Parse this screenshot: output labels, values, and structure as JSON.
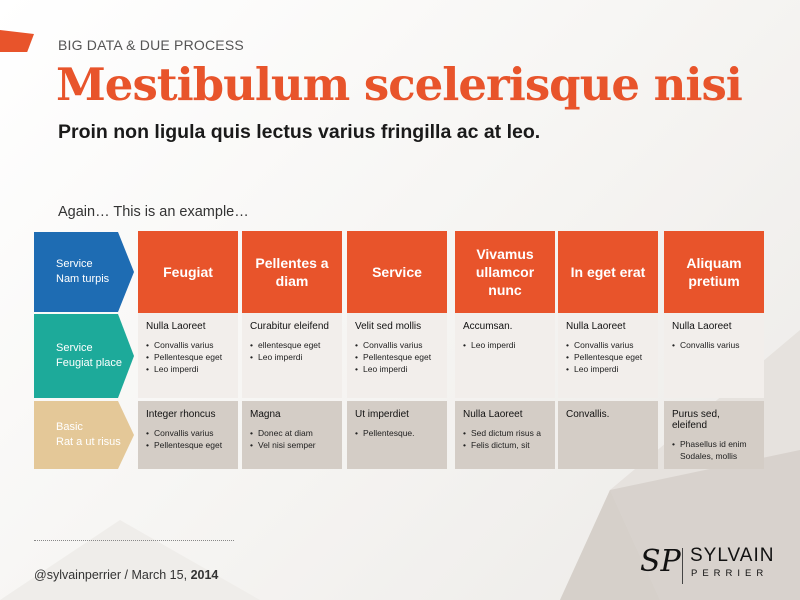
{
  "header": {
    "kicker": "BIG DATA & DUE PROCESS",
    "title": "Mestibulum scelerisque nisi",
    "subtitle": "Proin non ligula quis lectus varius fringilla ac at leo.",
    "intro": "Again… This is an example…"
  },
  "rows": [
    {
      "line1": "Service",
      "line2": "Nam turpis"
    },
    {
      "line1": "Service",
      "line2": "Feugiat place"
    },
    {
      "line1": "Basic",
      "line2": "Rat a ut risus"
    }
  ],
  "columns": [
    {
      "header": "Feugiat",
      "mid": {
        "title": "Nulla Laoreet",
        "bullets": [
          "Convallis varius",
          "Pellentesque eget",
          "Leo imperdi"
        ]
      },
      "bot": {
        "title": "Integer rhoncus",
        "bullets": [
          "Convallis varius",
          "Pellentesque eget"
        ]
      }
    },
    {
      "header": "Pellentes a diam",
      "mid": {
        "title": "Curabitur eleifend",
        "bullets": [
          "ellentesque eget",
          "Leo imperdi"
        ]
      },
      "bot": {
        "title": "Magna",
        "bullets": [
          "Donec at diam",
          "Vel nisi semper"
        ]
      }
    },
    {
      "header": "Service",
      "mid": {
        "title": "Velit sed mollis",
        "bullets": [
          "Convallis varius",
          "Pellentesque eget",
          "Leo imperdi"
        ]
      },
      "bot": {
        "title": "Ut imperdiet",
        "bullets": [
          "Pellentesque."
        ]
      }
    },
    {
      "header": "Vivamus ullamcor nunc",
      "mid": {
        "title": "Accumsan.",
        "bullets": [
          "Leo imperdi"
        ]
      },
      "bot": {
        "title": "Nulla Laoreet",
        "bullets": [
          "Sed dictum risus a",
          "Felis dictum, sit"
        ]
      }
    },
    {
      "header": "In eget erat",
      "mid": {
        "title": "Nulla Laoreet",
        "bullets": [
          "Convallis varius",
          "Pellentesque eget",
          "Leo imperdi"
        ]
      },
      "bot": {
        "title": "Convallis.",
        "bullets": []
      }
    },
    {
      "header": "Aliquam pretium",
      "mid": {
        "title": "Nulla Laoreet",
        "bullets": [
          "Convallis varius"
        ]
      },
      "bot": {
        "title": "Purus sed, eleifend",
        "bullets": [
          "Phasellus id enim Sodales, mollis"
        ]
      }
    }
  ],
  "footer": {
    "handle": "@sylvainperrier",
    "separator": "/",
    "date": "March 15,",
    "year": "2014"
  },
  "logo": {
    "monogram": "SP",
    "name": "SYLVAIN",
    "surname": "PERRIER"
  },
  "colors": {
    "accent": "#e8542b",
    "row1": "#1e6cb3",
    "row2": "#1daa9a",
    "row3": "#e4c898"
  }
}
